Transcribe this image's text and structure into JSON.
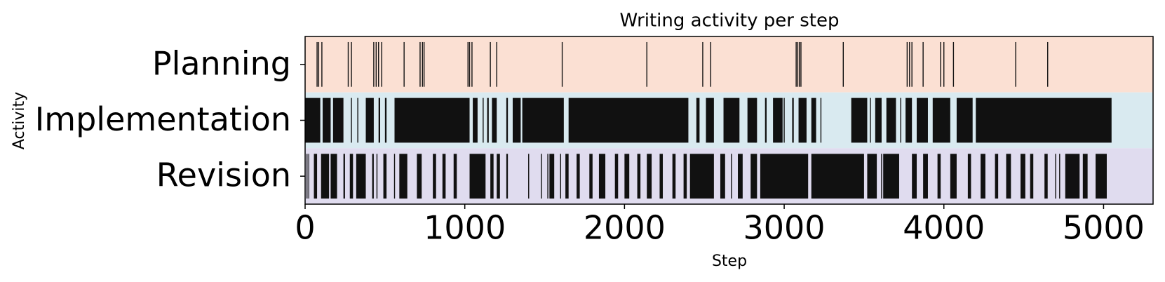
{
  "chart_data": {
    "type": "eventplot",
    "title": "Writing activity per step",
    "xlabel": "Step",
    "ylabel": "Activity",
    "categories": [
      "Planning",
      "Implementation",
      "Revision"
    ],
    "band_colors": [
      "#fbe0d3",
      "#d9eaf0",
      "#e0dcef"
    ],
    "color": "#111111",
    "xlim": [
      0,
      5310
    ],
    "xticks": [
      0,
      1000,
      2000,
      3000,
      4000,
      5000
    ],
    "events": [
      [
        75,
        85,
        105,
        270,
        290,
        430,
        445,
        460,
        480,
        620,
        720,
        735,
        745,
        1020,
        1030,
        1045,
        1160,
        1200,
        1610,
        2140,
        2490,
        2540,
        3075,
        3085,
        3095,
        3105,
        3370,
        3770,
        3785,
        3800,
        3870,
        3980,
        4000,
        4060,
        4450,
        4650
      ],
      [
        290,
        330,
        1115,
        2820,
        3000,
        3230,
        3540,
        3730
      ],
      [
        12,
        450,
        560,
        1400,
        1480,
        1520,
        1600,
        2670,
        3610,
        4700,
        4725
      ]
    ],
    "spans": [
      [],
      [
        [
          0,
          95
        ],
        [
          110,
          160
        ],
        [
          175,
          240
        ],
        [
          380,
          430
        ],
        [
          460,
          470
        ],
        [
          500,
          510
        ],
        [
          560,
          1030
        ],
        [
          1050,
          1080
        ],
        [
          1140,
          1150
        ],
        [
          1170,
          1200
        ],
        [
          1260,
          1270
        ],
        [
          1300,
          1350
        ],
        [
          1360,
          1620
        ],
        [
          1650,
          2400
        ],
        [
          2450,
          2470
        ],
        [
          2510,
          2560
        ],
        [
          2620,
          2720
        ],
        [
          2770,
          2830
        ],
        [
          2880,
          2890
        ],
        [
          2930,
          2990
        ],
        [
          3050,
          3060
        ],
        [
          3090,
          3140
        ],
        [
          3170,
          3200
        ],
        [
          3420,
          3520
        ],
        [
          3570,
          3610
        ],
        [
          3640,
          3700
        ],
        [
          3760,
          3800
        ],
        [
          3830,
          3900
        ],
        [
          3930,
          4040
        ],
        [
          4080,
          4180
        ],
        [
          4200,
          5050
        ]
      ],
      [
        [
          20,
          25
        ],
        [
          55,
          75
        ],
        [
          100,
          150
        ],
        [
          160,
          200
        ],
        [
          240,
          250
        ],
        [
          280,
          300
        ],
        [
          320,
          380
        ],
        [
          420,
          430
        ],
        [
          490,
          510
        ],
        [
          590,
          640
        ],
        [
          700,
          730
        ],
        [
          800,
          820
        ],
        [
          860,
          880
        ],
        [
          930,
          950
        ],
        [
          1030,
          1130
        ],
        [
          1160,
          1180
        ],
        [
          1200,
          1220
        ],
        [
          1260,
          1270
        ],
        [
          1530,
          1560
        ],
        [
          1630,
          1650
        ],
        [
          1700,
          1720
        ],
        [
          1780,
          1800
        ],
        [
          1840,
          1880
        ],
        [
          1940,
          1960
        ],
        [
          2000,
          2030
        ],
        [
          2080,
          2100
        ],
        [
          2140,
          2170
        ],
        [
          2220,
          2240
        ],
        [
          2300,
          2320
        ],
        [
          2370,
          2390
        ],
        [
          2410,
          2560
        ],
        [
          2600,
          2630
        ],
        [
          2710,
          2740
        ],
        [
          2790,
          2830
        ],
        [
          2850,
          3150
        ],
        [
          3170,
          3500
        ],
        [
          3520,
          3580
        ],
        [
          3620,
          3720
        ],
        [
          3800,
          3830
        ],
        [
          3870,
          3900
        ],
        [
          3960,
          3980
        ],
        [
          4040,
          4080
        ],
        [
          4150,
          4170
        ],
        [
          4230,
          4260
        ],
        [
          4320,
          4340
        ],
        [
          4390,
          4420
        ],
        [
          4480,
          4510
        ],
        [
          4540,
          4560
        ],
        [
          4630,
          4650
        ],
        [
          4760,
          4850
        ],
        [
          4870,
          4900
        ],
        [
          4950,
          5020
        ]
      ]
    ]
  }
}
